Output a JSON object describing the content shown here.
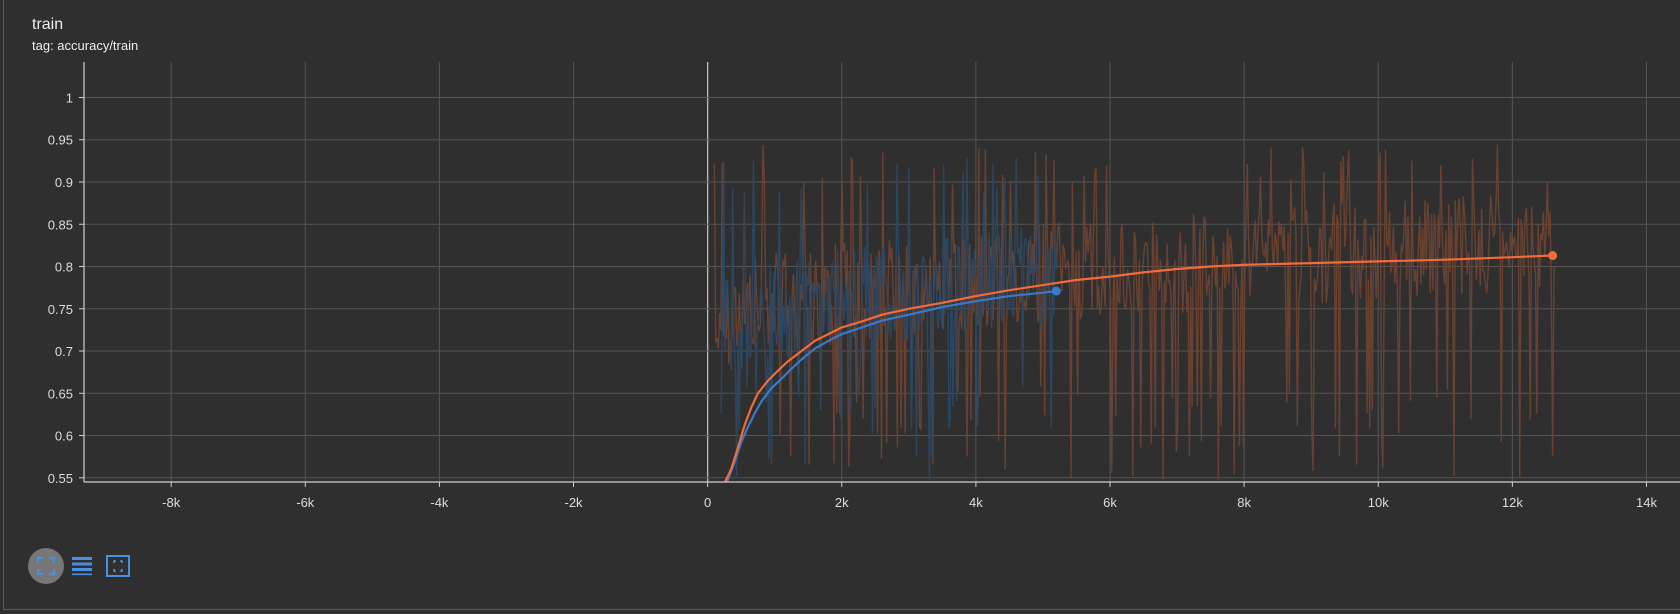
{
  "card": {
    "title": "train",
    "tag_label": "tag: accuracy/train"
  },
  "toolbar": {
    "buttons": [
      {
        "icon": "fit-domain-icon",
        "active": true
      },
      {
        "icon": "log-scale-icon",
        "active": false
      },
      {
        "icon": "expand-icon",
        "active": false
      }
    ]
  },
  "colors": {
    "background": "#2f2f2f",
    "grid": "#555555",
    "axis": "#cfcfcf",
    "orange": "#f26b3a",
    "orange_raw": "#6b4232",
    "blue": "#3b79c8",
    "blue_raw": "#2c4863",
    "toolbar_accent": "#4a90e2"
  },
  "chart_data": {
    "type": "line",
    "xlim": [
      -9300,
      14500
    ],
    "ylim": [
      0.545,
      1.042
    ],
    "x_ticks": [
      -8000,
      -6000,
      -4000,
      -2000,
      0,
      2000,
      4000,
      6000,
      8000,
      10000,
      12000,
      14000
    ],
    "x_tick_labels": [
      "-8k",
      "-6k",
      "-4k",
      "-2k",
      "0",
      "2k",
      "4k",
      "6k",
      "8k",
      "10k",
      "12k",
      "14k"
    ],
    "y_ticks": [
      0.55,
      0.6,
      0.65,
      0.7,
      0.75,
      0.8,
      0.85,
      0.9,
      0.95,
      1
    ],
    "y_tick_labels": [
      "0.55",
      "0.6",
      "0.65",
      "0.7",
      "0.75",
      "0.8",
      "0.85",
      "0.9",
      "0.95",
      "1"
    ],
    "grid": true,
    "series": [
      {
        "color": "#f26b3a",
        "raw_color": "#6b4232",
        "raw": {
          "x_start": 100,
          "x_end": 12640,
          "count": 640,
          "seed": 17,
          "mean_start": 0.73,
          "mean_end": 0.83,
          "spread": 0.06,
          "low": 0.545,
          "high": 0.945
        },
        "smoothed": {
          "x": [
            260,
            350,
            450,
            550,
            650,
            750,
            900,
            1050,
            1200,
            1400,
            1600,
            1800,
            2000,
            2300,
            2600,
            3000,
            3500,
            4000,
            4500,
            5000,
            5500,
            6000,
            6500,
            7000,
            7500,
            8000,
            9000,
            10000,
            11000,
            12000,
            12600
          ],
          "y": [
            0.545,
            0.56,
            0.585,
            0.612,
            0.633,
            0.65,
            0.665,
            0.677,
            0.688,
            0.7,
            0.712,
            0.72,
            0.728,
            0.735,
            0.743,
            0.75,
            0.757,
            0.765,
            0.772,
            0.778,
            0.784,
            0.788,
            0.793,
            0.797,
            0.8,
            0.802,
            0.804,
            0.806,
            0.808,
            0.811,
            0.813
          ]
        }
      },
      {
        "color": "#3b79c8",
        "raw_color": "#2c4863",
        "raw": {
          "x_start": 200,
          "x_end": 5200,
          "count": 260,
          "seed": 29,
          "mean_start": 0.72,
          "mean_end": 0.79,
          "spread": 0.06,
          "low": 0.545,
          "high": 0.935
        },
        "smoothed": {
          "x": [
            290,
            400,
            500,
            600,
            700,
            800,
            950,
            1100,
            1250,
            1400,
            1600,
            1800,
            2000,
            2300,
            2600,
            3000,
            3500,
            4000,
            4500,
            5000,
            5200
          ],
          "y": [
            0.545,
            0.568,
            0.592,
            0.61,
            0.626,
            0.64,
            0.656,
            0.667,
            0.679,
            0.69,
            0.703,
            0.712,
            0.72,
            0.728,
            0.736,
            0.743,
            0.752,
            0.759,
            0.765,
            0.769,
            0.771
          ]
        }
      }
    ]
  }
}
